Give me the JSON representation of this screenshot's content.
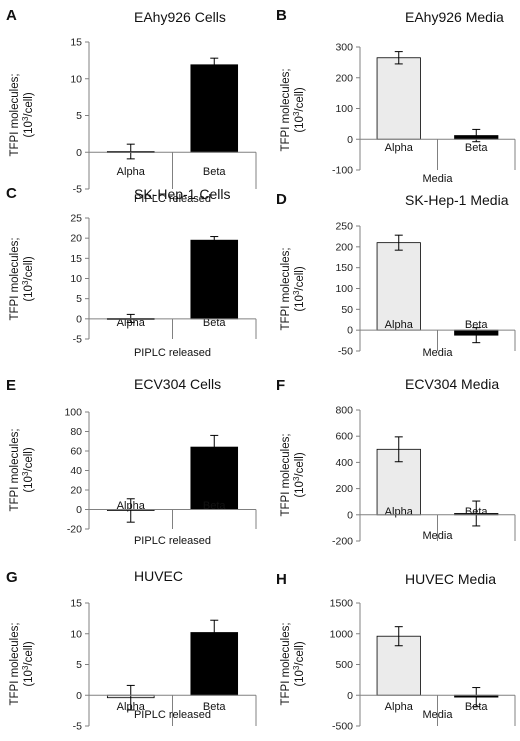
{
  "colors": {
    "alpha_fill": "#ebebeb",
    "beta_fill": "#000000",
    "axis": "#808080",
    "error_bar": "#000000"
  },
  "chart_data": [
    {
      "type": "bar",
      "panel": "A",
      "title": "EAhy926 Cells",
      "ylabel_line1": "TFPI molecules;",
      "ylabel_line2_pre": "(10",
      "ylabel_line2_sup": "3",
      "ylabel_line2_post": "/cell)",
      "xlabel": "PIPLC released",
      "categories": [
        "Alpha",
        "Beta"
      ],
      "values": [
        0.1,
        11.9
      ],
      "errors": [
        1.0,
        0.9
      ],
      "ylim": [
        -5,
        15
      ],
      "yticks": [
        -5,
        0,
        5,
        10,
        15
      ]
    },
    {
      "type": "bar",
      "panel": "B",
      "title": "EAhy926 Media",
      "ylabel_line1": "TFPI molecules;",
      "ylabel_line2_pre": "(10",
      "ylabel_line2_sup": "3",
      "ylabel_line2_post": "/cell)",
      "xlabel": "Media",
      "categories": [
        "Alpha",
        "Beta"
      ],
      "values": [
        265,
        12
      ],
      "errors": [
        20,
        20
      ],
      "ylim": [
        -100,
        300
      ],
      "yticks": [
        -100,
        0,
        100,
        200,
        300
      ]
    },
    {
      "type": "bar",
      "panel": "C",
      "title": "SK-Hep-1 Cells",
      "ylabel_line1": "TFPI molecules;",
      "ylabel_line2_pre": "(10",
      "ylabel_line2_sup": "3",
      "ylabel_line2_post": "/cell)",
      "xlabel": "PIPLC released",
      "categories": [
        "Alpha",
        "Beta"
      ],
      "values": [
        0.1,
        19.5
      ],
      "errors": [
        1.0,
        0.9
      ],
      "ylim": [
        -5,
        25
      ],
      "yticks": [
        -5,
        0,
        5,
        10,
        15,
        20,
        25
      ]
    },
    {
      "type": "bar",
      "panel": "D",
      "title": "SK-Hep-1 Media",
      "ylabel_line1": "TFPI molecules;",
      "ylabel_line2_pre": "(10",
      "ylabel_line2_sup": "3",
      "ylabel_line2_post": "/cell)",
      "xlabel": "Media",
      "categories": [
        "Alpha",
        "Beta"
      ],
      "values": [
        210,
        -12
      ],
      "errors": [
        18,
        18
      ],
      "ylim": [
        -50,
        250
      ],
      "yticks": [
        -50,
        0,
        50,
        100,
        150,
        200,
        250
      ]
    },
    {
      "type": "bar",
      "panel": "E",
      "title": "ECV304 Cells",
      "ylabel_line1": "TFPI molecules;",
      "ylabel_line2_pre": "(10",
      "ylabel_line2_sup": "3",
      "ylabel_line2_post": "/cell)",
      "xlabel": "PIPLC released",
      "categories": [
        "Alpha",
        "Beta"
      ],
      "values": [
        -1,
        64
      ],
      "errors": [
        12,
        12
      ],
      "ylim": [
        -20,
        100
      ],
      "yticks": [
        -20,
        0,
        20,
        40,
        60,
        80,
        100
      ]
    },
    {
      "type": "bar",
      "panel": "F",
      "title": "ECV304 Media",
      "ylabel_line1": "TFPI molecules;",
      "ylabel_line2_pre": "(10",
      "ylabel_line2_sup": "3",
      "ylabel_line2_post": "/cell)",
      "xlabel": "Media",
      "categories": [
        "Alpha",
        "Beta"
      ],
      "values": [
        500,
        10
      ],
      "errors": [
        95,
        95
      ],
      "ylim": [
        -200,
        800
      ],
      "yticks": [
        -200,
        0,
        200,
        400,
        600,
        800
      ]
    },
    {
      "type": "bar",
      "panel": "G",
      "title": "HUVEC",
      "ylabel_line1": "TFPI molecules;",
      "ylabel_line2_pre": "(10",
      "ylabel_line2_sup": "3",
      "ylabel_line2_post": "/cell)",
      "xlabel": "PIPLC released",
      "categories": [
        "Alpha",
        "Beta"
      ],
      "values": [
        -0.4,
        10.2
      ],
      "errors": [
        2.0,
        2.0
      ],
      "ylim": [
        -5,
        15
      ],
      "yticks": [
        -5,
        0,
        5,
        10,
        15
      ]
    },
    {
      "type": "bar",
      "panel": "H",
      "title": "HUVEC Media",
      "ylabel_line1": "TFPI molecules;",
      "ylabel_line2_pre": "(10",
      "ylabel_line2_sup": "3",
      "ylabel_line2_post": "/cell)",
      "xlabel": "Media",
      "categories": [
        "Alpha",
        "Beta"
      ],
      "values": [
        960,
        -30
      ],
      "errors": [
        155,
        155
      ],
      "ylim": [
        -500,
        1500
      ],
      "yticks": [
        -500,
        0,
        500,
        1000,
        1500
      ]
    }
  ]
}
